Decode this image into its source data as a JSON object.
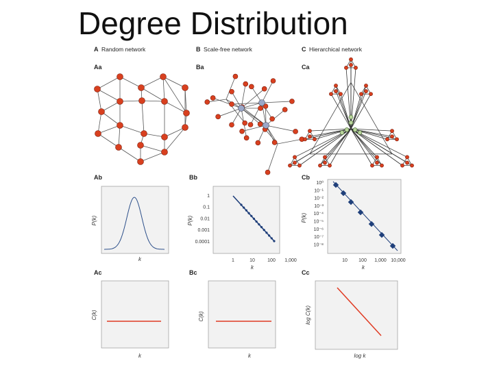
{
  "title": "Degree Distribution",
  "columns": [
    {
      "letter": "A",
      "heading": "Random network",
      "network": "Aa",
      "distribution": {
        "label": "Ab",
        "ylabel": "P(k)",
        "xlabel": "k"
      },
      "clustering": {
        "label": "Ac",
        "ylabel": "C(k)",
        "xlabel": "k"
      }
    },
    {
      "letter": "B",
      "heading": "Scale-free network",
      "network": "Ba",
      "distribution": {
        "label": "Bb",
        "ylabel": "P(k)",
        "xlabel": "k",
        "yticks": [
          "1",
          "0.1",
          "0.01",
          "0.001",
          "0.0001"
        ],
        "xticks": [
          "1",
          "10",
          "100",
          "1,000"
        ]
      },
      "clustering": {
        "label": "Bc",
        "ylabel": "C(k)",
        "xlabel": "k"
      }
    },
    {
      "letter": "C",
      "heading": "Hierarchical network",
      "network": "Ca",
      "distribution": {
        "label": "Cb",
        "ylabel": "P(k)",
        "xlabel": "k",
        "yticks": [
          "10⁰",
          "10⁻¹",
          "10⁻²",
          "10⁻³",
          "10⁻⁴",
          "10⁻⁵",
          "10⁻⁶",
          "10⁻⁷",
          "10⁻⁸"
        ],
        "xticks": [
          "10",
          "100",
          "1,000",
          "10,000"
        ]
      },
      "clustering": {
        "label": "Cc",
        "ylabel": "log C(k)",
        "xlabel": "log k"
      }
    }
  ]
}
